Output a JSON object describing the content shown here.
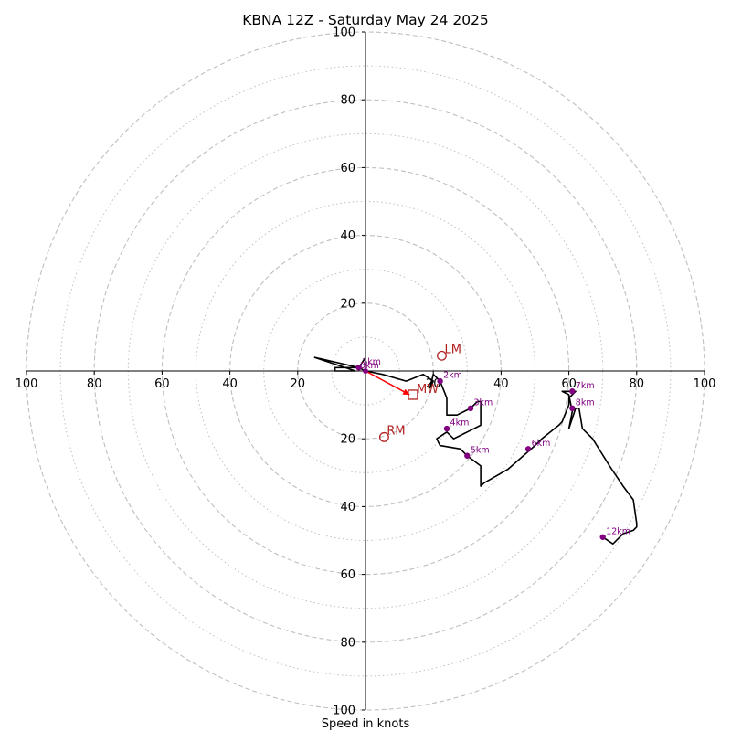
{
  "chart_data": {
    "type": "hodograph",
    "title": "KBNA 12Z - Saturday May 24 2025",
    "xlabel": "Speed in knots",
    "ylabel": "",
    "xlim": [
      -100,
      100
    ],
    "ylim": [
      -100,
      100
    ],
    "ring_values_major": [
      20,
      40,
      60,
      80,
      100
    ],
    "ring_values_minor": [
      10,
      30,
      50,
      70,
      90
    ],
    "x_tick_labels": [
      "100",
      "80",
      "60",
      "40",
      "20",
      "20",
      "40",
      "60",
      "80",
      "100"
    ],
    "y_tick_labels": [
      "100",
      "80",
      "60",
      "40",
      "20",
      "20",
      "40",
      "60",
      "80",
      "100"
    ],
    "colors": {
      "trace": "#000000",
      "points": "#800080",
      "motion": "#b22222",
      "shear_vector": "#ff0000",
      "grid": "#bfbfbf"
    },
    "hodograph_trace": [
      [
        0,
        4
      ],
      [
        -2,
        1
      ],
      [
        -9,
        1
      ],
      [
        -9,
        0
      ],
      [
        -3,
        0
      ],
      [
        -15,
        4
      ],
      [
        -2,
        1
      ],
      [
        0,
        0
      ],
      [
        5,
        -1
      ],
      [
        12,
        -3
      ],
      [
        17,
        -1
      ],
      [
        20,
        -3
      ],
      [
        19,
        -5
      ],
      [
        20,
        -1
      ],
      [
        22,
        -3
      ],
      [
        24,
        -8
      ],
      [
        24,
        -13
      ],
      [
        27,
        -13
      ],
      [
        31,
        -11
      ],
      [
        33,
        -9
      ],
      [
        34,
        -9
      ],
      [
        34,
        -16
      ],
      [
        30,
        -18
      ],
      [
        28,
        -19
      ],
      [
        26,
        -20
      ],
      [
        24,
        -18
      ],
      [
        21,
        -20
      ],
      [
        22,
        -22
      ],
      [
        28,
        -23
      ],
      [
        30,
        -25
      ],
      [
        34,
        -28
      ],
      [
        34,
        -34
      ],
      [
        35,
        -33
      ],
      [
        42,
        -29
      ],
      [
        50,
        -22
      ],
      [
        52,
        -20
      ],
      [
        57,
        -16
      ],
      [
        58,
        -15
      ],
      [
        60,
        -10
      ],
      [
        60,
        -8
      ],
      [
        62,
        -6
      ],
      [
        58,
        -6
      ],
      [
        60,
        -7
      ],
      [
        61,
        -12
      ],
      [
        60,
        -17
      ],
      [
        62,
        -11
      ],
      [
        63,
        -11
      ],
      [
        64,
        -17
      ],
      [
        67,
        -20
      ],
      [
        72,
        -28
      ],
      [
        76,
        -34
      ],
      [
        79,
        -38
      ],
      [
        80,
        -45
      ],
      [
        80,
        -46
      ],
      [
        79,
        -47
      ],
      [
        76,
        -48
      ],
      [
        73,
        -51
      ],
      [
        70,
        -49
      ]
    ],
    "height_labels": [
      {
        "label": "1km",
        "x": -2,
        "y": 1
      },
      {
        "label": "2km",
        "x": 22,
        "y": -3
      },
      {
        "label": "3km",
        "x": 31,
        "y": -11
      },
      {
        "label": "4km",
        "x": 24,
        "y": -17
      },
      {
        "label": "5km",
        "x": 30,
        "y": -25
      },
      {
        "label": "6km",
        "x": 48,
        "y": -23
      },
      {
        "label": "7km",
        "x": 61,
        "y": -6
      },
      {
        "label": "8km",
        "x": 61,
        "y": -11
      },
      {
        "label": "12km",
        "x": 70,
        "y": -49
      }
    ],
    "surface_label": {
      "label": "0km",
      "x": 0,
      "y": 0
    },
    "storm_motion": [
      {
        "label": "LM",
        "x": 22.5,
        "y": 4.5
      },
      {
        "label": "RM",
        "x": 5.5,
        "y": -19.5
      }
    ],
    "mean_wind": {
      "label": "MW",
      "x": 14,
      "y": -7
    },
    "shear_vector": {
      "x1": 0,
      "y1": 0,
      "x2": 13,
      "y2": -7
    }
  }
}
